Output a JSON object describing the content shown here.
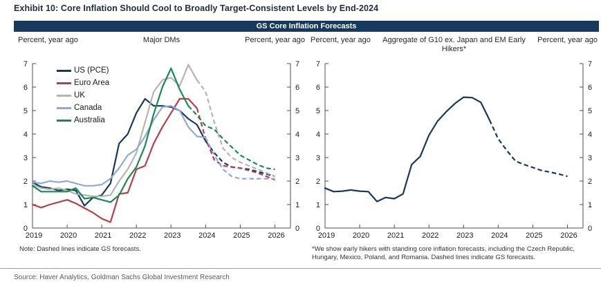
{
  "title": "Exhibit 10: Core Inflation Should Cool to Broadly Target-Consistent Levels by End-2024",
  "banner": "GS Core Inflation Forecasts",
  "source": "Source: Haver Analytics, Goldman Sachs Global Investment Research",
  "colors": {
    "accent_navy": "#17375c",
    "banner_bg": "#17395c",
    "axis": "#4d4d4d",
    "tick_label": "#1a1a1a"
  },
  "chart_data": [
    {
      "type": "line",
      "title": "Major DMs",
      "ylabel_left": "Percent, year ago",
      "ylabel_right": "Percent, year ago",
      "note": "Note: Dashed lines indicate GS forecasts.",
      "x_start": 2019,
      "x_step": 0.25,
      "x_ticks": [
        2019,
        2020,
        2021,
        2022,
        2023,
        2024,
        2025,
        2026
      ],
      "x_range": [
        2019,
        2026.45
      ],
      "ylim": [
        0,
        7
      ],
      "y_ticks": [
        0,
        1,
        2,
        3,
        4,
        5,
        6,
        7
      ],
      "grid": false,
      "legend": true,
      "legend_position": "top-left-inside",
      "series": [
        {
          "name": "US (PCE)",
          "color": "#17375c",
          "solid_until": 20,
          "values": [
            1.95,
            1.75,
            1.7,
            1.6,
            1.65,
            1.6,
            0.95,
            1.3,
            1.4,
            1.9,
            3.6,
            4.0,
            4.9,
            5.5,
            5.2,
            5.2,
            5.15,
            5.0,
            4.65,
            4.4,
            3.7,
            3.2,
            2.8,
            2.6,
            2.55,
            2.5,
            2.4,
            2.3,
            2.2
          ]
        },
        {
          "name": "Euro Area",
          "color": "#b34045",
          "solid_until": 19,
          "values": [
            1.0,
            0.87,
            1.0,
            1.1,
            1.2,
            1.05,
            0.85,
            0.65,
            0.4,
            0.25,
            1.45,
            1.5,
            2.5,
            2.65,
            3.6,
            4.3,
            4.9,
            5.5,
            5.5,
            5.1,
            3.8,
            2.9,
            2.65,
            2.6,
            2.55,
            2.45,
            2.35,
            2.2,
            2.05
          ]
        },
        {
          "name": "UK",
          "color": "#b4b4b4",
          "solid_until": 19,
          "values": [
            1.85,
            1.7,
            1.65,
            1.7,
            1.6,
            1.45,
            1.4,
            1.35,
            1.35,
            1.4,
            2.0,
            2.5,
            3.2,
            4.5,
            5.8,
            6.3,
            6.4,
            6.05,
            6.95,
            6.3,
            5.8,
            4.5,
            3.4,
            3.0,
            2.8,
            2.65,
            2.5,
            2.35,
            2.2
          ]
        },
        {
          "name": "Canada",
          "color": "#8fa9d6",
          "solid_until": 20,
          "values": [
            1.95,
            1.9,
            2.0,
            1.95,
            2.0,
            1.9,
            1.8,
            1.8,
            1.85,
            2.1,
            2.55,
            3.1,
            3.35,
            3.9,
            4.6,
            5.15,
            5.2,
            5.0,
            4.3,
            3.9,
            3.85,
            3.1,
            2.5,
            2.2,
            2.1,
            2.1,
            2.1,
            2.1,
            2.1
          ]
        },
        {
          "name": "Australia",
          "color": "#178a50",
          "solid_until": 18,
          "values": [
            1.8,
            1.55,
            1.55,
            1.55,
            1.55,
            1.7,
            1.25,
            1.3,
            1.2,
            1.1,
            1.4,
            2.1,
            2.6,
            3.5,
            4.85,
            6.0,
            6.8,
            5.9,
            5.2,
            4.8,
            4.35,
            4.2,
            3.8,
            3.45,
            3.1,
            2.9,
            2.7,
            2.55,
            2.5
          ]
        }
      ]
    },
    {
      "type": "line",
      "title": "Aggregate of G10 ex. Japan and EM Early Hikers*",
      "ylabel_left": "Percent, year ago",
      "ylabel_right": "Percent, year ago",
      "note": "*We show early hikers with standing core inflation forecasts, including the Czech Republic, Hungary, Mexico, Poland, and Romania. Dashed lines indicate GS forecasts.",
      "x_start": 2019,
      "x_step": 0.25,
      "x_ticks": [
        2019,
        2020,
        2021,
        2022,
        2023,
        2024,
        2025,
        2026
      ],
      "x_range": [
        2019,
        2026.45
      ],
      "ylim": [
        0,
        7
      ],
      "y_ticks": [
        0,
        1,
        2,
        3,
        4,
        5,
        6,
        7
      ],
      "grid": false,
      "legend": false,
      "series": [
        {
          "name": "Aggregate of G10 ex. Japan and EM Early Hikers",
          "color": "#17375c",
          "solid_until": 19,
          "values": [
            1.7,
            1.55,
            1.57,
            1.62,
            1.57,
            1.55,
            1.13,
            1.3,
            1.25,
            1.45,
            2.7,
            3.05,
            3.95,
            4.55,
            4.95,
            5.3,
            5.57,
            5.55,
            5.35,
            4.6,
            3.8,
            3.3,
            2.85,
            2.7,
            2.58,
            2.45,
            2.38,
            2.3,
            2.2
          ]
        }
      ]
    }
  ]
}
